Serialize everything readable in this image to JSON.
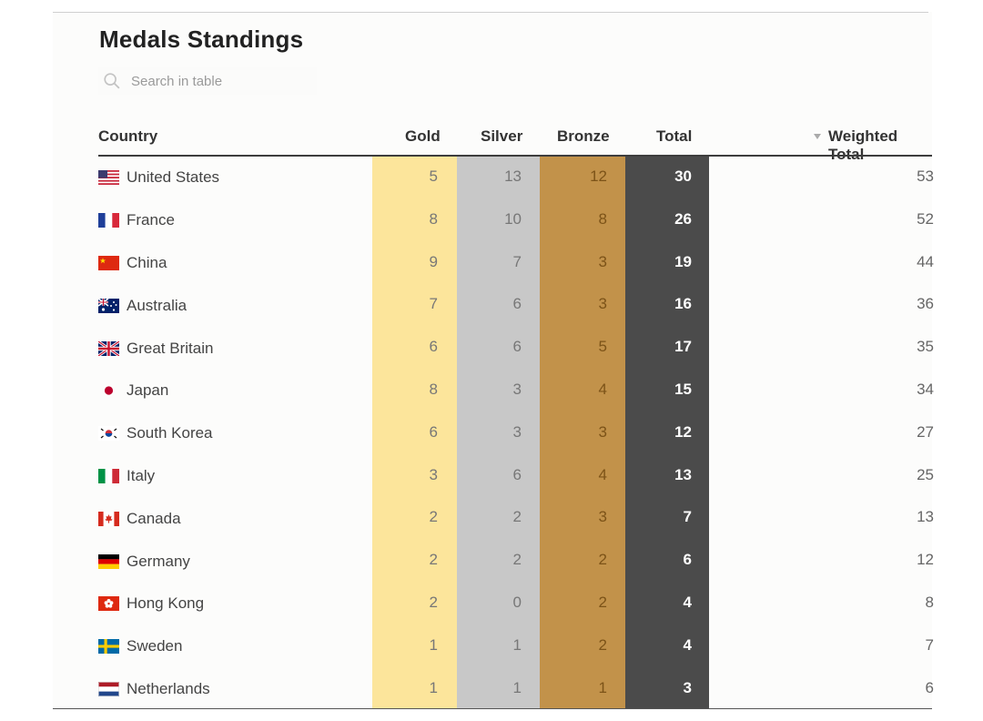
{
  "page": {
    "title": "Medals Standings"
  },
  "search": {
    "placeholder": "Search in table",
    "icon": "search-icon"
  },
  "table": {
    "columns": {
      "country": "Country",
      "gold": "Gold",
      "silver": "Silver",
      "bronze": "Bronze",
      "total": "Total",
      "weighted": "Weighted Total"
    },
    "sorted_column": "weighted",
    "sort_direction": "descending",
    "colors": {
      "gold": "#fce59b",
      "silver": "#c8c8c8",
      "bronze": "#c2924a",
      "total": "#4b4b4b"
    },
    "rows": [
      {
        "country": "United States",
        "flag": "us-flag-icon",
        "gold": "5",
        "silver": "13",
        "bronze": "12",
        "total": "30",
        "weighted": "53"
      },
      {
        "country": "France",
        "flag": "france-flag-icon",
        "gold": "8",
        "silver": "10",
        "bronze": "8",
        "total": "26",
        "weighted": "52"
      },
      {
        "country": "China",
        "flag": "china-flag-icon",
        "gold": "9",
        "silver": "7",
        "bronze": "3",
        "total": "19",
        "weighted": "44"
      },
      {
        "country": "Australia",
        "flag": "australia-flag-icon",
        "gold": "7",
        "silver": "6",
        "bronze": "3",
        "total": "16",
        "weighted": "36"
      },
      {
        "country": "Great Britain",
        "flag": "great-britain-flag-icon",
        "gold": "6",
        "silver": "6",
        "bronze": "5",
        "total": "17",
        "weighted": "35"
      },
      {
        "country": "Japan",
        "flag": "japan-flag-icon",
        "gold": "8",
        "silver": "3",
        "bronze": "4",
        "total": "15",
        "weighted": "34"
      },
      {
        "country": "South Korea",
        "flag": "south-korea-flag-icon",
        "gold": "6",
        "silver": "3",
        "bronze": "3",
        "total": "12",
        "weighted": "27"
      },
      {
        "country": "Italy",
        "flag": "italy-flag-icon",
        "gold": "3",
        "silver": "6",
        "bronze": "4",
        "total": "13",
        "weighted": "25"
      },
      {
        "country": "Canada",
        "flag": "canada-flag-icon",
        "gold": "2",
        "silver": "2",
        "bronze": "3",
        "total": "7",
        "weighted": "13"
      },
      {
        "country": "Germany",
        "flag": "germany-flag-icon",
        "gold": "2",
        "silver": "2",
        "bronze": "2",
        "total": "6",
        "weighted": "12"
      },
      {
        "country": "Hong Kong",
        "flag": "hong-kong-flag-icon",
        "gold": "2",
        "silver": "0",
        "bronze": "2",
        "total": "4",
        "weighted": "8"
      },
      {
        "country": "Sweden",
        "flag": "sweden-flag-icon",
        "gold": "1",
        "silver": "1",
        "bronze": "2",
        "total": "4",
        "weighted": "7"
      },
      {
        "country": "Netherlands",
        "flag": "netherlands-flag-icon",
        "gold": "1",
        "silver": "1",
        "bronze": "1",
        "total": "3",
        "weighted": "6"
      }
    ]
  }
}
